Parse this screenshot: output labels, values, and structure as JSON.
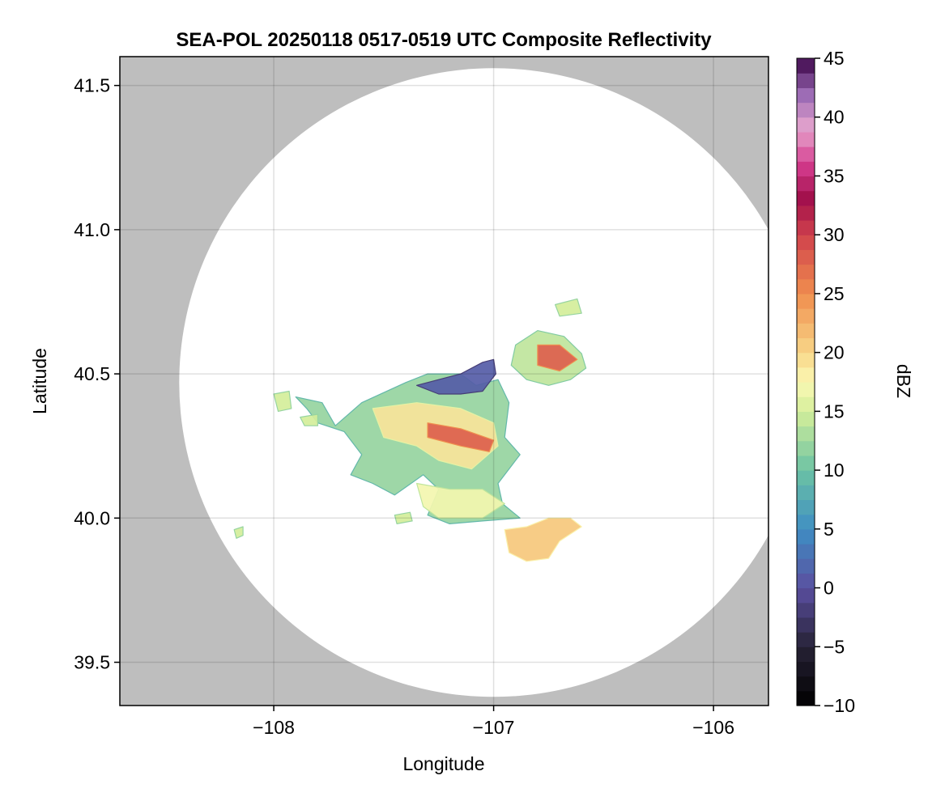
{
  "chart_data": {
    "type": "heatmap",
    "title": "SEA-POL 20250118 0517-0519 UTC Composite Reflectivity",
    "xlabel": "Longitude",
    "ylabel": "Latitude",
    "xlim": [
      -108.7,
      -105.75
    ],
    "ylim": [
      39.35,
      41.6
    ],
    "xticks": [
      -108,
      -107,
      -106
    ],
    "xtick_labels": [
      "−108",
      "−107",
      "−106"
    ],
    "yticks": [
      39.5,
      40.0,
      40.5,
      41.0,
      41.5
    ],
    "ytick_labels": [
      "39.5",
      "40.0",
      "40.5",
      "41.0",
      "41.5"
    ],
    "grid": true,
    "background_color": "#bebebe",
    "radar_coverage": {
      "center": [
        -107.0,
        40.47
      ],
      "radius_deg_lon": 1.43,
      "radius_deg_lat": 1.09,
      "fill": "#ffffff"
    },
    "colorbar": {
      "label": "dBZ",
      "min": -10,
      "max": 45,
      "ticks": [
        -10,
        -5,
        0,
        5,
        10,
        15,
        20,
        25,
        30,
        35,
        40,
        45
      ],
      "tick_labels": [
        "−10",
        "−5",
        "0",
        "5",
        "10",
        "15",
        "20",
        "25",
        "30",
        "35",
        "40",
        "45"
      ],
      "stops": [
        {
          "v": -10,
          "c": "#000000"
        },
        {
          "v": -5,
          "c": "#272236"
        },
        {
          "v": 0,
          "c": "#5a4fa0"
        },
        {
          "v": 5,
          "c": "#3f8ec3"
        },
        {
          "v": 10,
          "c": "#6cc2a4"
        },
        {
          "v": 15,
          "c": "#d4ee9a"
        },
        {
          "v": 17.5,
          "c": "#fbf8b4"
        },
        {
          "v": 20,
          "c": "#f8d688"
        },
        {
          "v": 25,
          "c": "#f08e4e"
        },
        {
          "v": 30,
          "c": "#d0414c"
        },
        {
          "v": 33,
          "c": "#a10f4a"
        },
        {
          "v": 36,
          "c": "#d43c8e"
        },
        {
          "v": 39,
          "c": "#e7a6ce"
        },
        {
          "v": 42,
          "c": "#9a69b4"
        },
        {
          "v": 45,
          "c": "#3d0548"
        }
      ]
    },
    "echo_regions": [
      {
        "name": "main-cell",
        "dbz": 12,
        "polygon": [
          [
            -107.9,
            40.42
          ],
          [
            -107.78,
            40.4
          ],
          [
            -107.72,
            40.32
          ],
          [
            -107.6,
            40.4
          ],
          [
            -107.4,
            40.47
          ],
          [
            -107.3,
            40.5
          ],
          [
            -107.15,
            40.5
          ],
          [
            -107.08,
            40.46
          ],
          [
            -106.98,
            40.48
          ],
          [
            -106.93,
            40.4
          ],
          [
            -106.95,
            40.28
          ],
          [
            -106.88,
            40.22
          ],
          [
            -106.98,
            40.12
          ],
          [
            -106.96,
            40.05
          ],
          [
            -106.88,
            40.0
          ],
          [
            -107.05,
            39.99
          ],
          [
            -107.2,
            39.98
          ],
          [
            -107.3,
            40.01
          ],
          [
            -107.25,
            40.1
          ],
          [
            -107.32,
            40.15
          ],
          [
            -107.45,
            40.08
          ],
          [
            -107.55,
            40.12
          ],
          [
            -107.65,
            40.15
          ],
          [
            -107.6,
            40.22
          ],
          [
            -107.68,
            40.3
          ],
          [
            -107.8,
            40.33
          ],
          [
            -107.85,
            40.38
          ]
        ]
      },
      {
        "name": "main-core",
        "dbz": 19,
        "polygon": [
          [
            -107.55,
            40.38
          ],
          [
            -107.35,
            40.4
          ],
          [
            -107.15,
            40.38
          ],
          [
            -107.0,
            40.33
          ],
          [
            -106.98,
            40.25
          ],
          [
            -107.1,
            40.17
          ],
          [
            -107.25,
            40.2
          ],
          [
            -107.35,
            40.25
          ],
          [
            -107.5,
            40.28
          ]
        ]
      },
      {
        "name": "main-south-lobe",
        "dbz": 17,
        "polygon": [
          [
            -107.35,
            40.12
          ],
          [
            -107.2,
            40.1
          ],
          [
            -107.05,
            40.1
          ],
          [
            -106.95,
            40.05
          ],
          [
            -107.05,
            40.0
          ],
          [
            -107.25,
            40.0
          ],
          [
            -107.32,
            40.04
          ]
        ]
      },
      {
        "name": "main-high-core",
        "dbz": 28,
        "polygon": [
          [
            -107.3,
            40.33
          ],
          [
            -107.15,
            40.31
          ],
          [
            -107.0,
            40.27
          ],
          [
            -107.02,
            40.23
          ],
          [
            -107.15,
            40.25
          ],
          [
            -107.3,
            40.28
          ]
        ]
      },
      {
        "name": "north-band",
        "dbz": 1,
        "polygon": [
          [
            -107.35,
            40.46
          ],
          [
            -107.25,
            40.48
          ],
          [
            -107.15,
            40.5
          ],
          [
            -107.05,
            40.54
          ],
          [
            -107.0,
            40.55
          ],
          [
            -106.99,
            40.5
          ],
          [
            -107.05,
            40.44
          ],
          [
            -107.15,
            40.43
          ],
          [
            -107.25,
            40.43
          ]
        ]
      },
      {
        "name": "ne-cell",
        "dbz": 14,
        "polygon": [
          [
            -106.9,
            40.6
          ],
          [
            -106.8,
            40.65
          ],
          [
            -106.68,
            40.63
          ],
          [
            -106.6,
            40.57
          ],
          [
            -106.58,
            40.52
          ],
          [
            -106.65,
            40.48
          ],
          [
            -106.75,
            40.46
          ],
          [
            -106.85,
            40.48
          ],
          [
            -106.92,
            40.53
          ]
        ]
      },
      {
        "name": "ne-core",
        "dbz": 28,
        "polygon": [
          [
            -106.8,
            40.6
          ],
          [
            -106.7,
            40.6
          ],
          [
            -106.62,
            40.55
          ],
          [
            -106.7,
            40.51
          ],
          [
            -106.8,
            40.53
          ]
        ]
      },
      {
        "name": "se-cell",
        "dbz": 21,
        "polygon": [
          [
            -106.95,
            39.96
          ],
          [
            -106.85,
            39.97
          ],
          [
            -106.75,
            40.0
          ],
          [
            -106.65,
            40.0
          ],
          [
            -106.6,
            39.97
          ],
          [
            -106.7,
            39.92
          ],
          [
            -106.75,
            39.86
          ],
          [
            -106.85,
            39.85
          ],
          [
            -106.93,
            39.88
          ]
        ]
      },
      {
        "name": "far-ne-cell",
        "dbz": 15,
        "polygon": [
          [
            -106.72,
            40.74
          ],
          [
            -106.62,
            40.76
          ],
          [
            -106.6,
            40.71
          ],
          [
            -106.7,
            40.7
          ]
        ]
      },
      {
        "name": "west-fragment",
        "dbz": 15,
        "polygon": [
          [
            -108.0,
            40.43
          ],
          [
            -107.93,
            40.44
          ],
          [
            -107.92,
            40.38
          ],
          [
            -107.98,
            40.37
          ]
        ]
      },
      {
        "name": "west-fragment-2",
        "dbz": 15,
        "polygon": [
          [
            -107.88,
            40.35
          ],
          [
            -107.8,
            40.36
          ],
          [
            -107.8,
            40.32
          ],
          [
            -107.86,
            40.32
          ]
        ]
      },
      {
        "name": "sw-fragment",
        "dbz": 15,
        "polygon": [
          [
            -107.45,
            40.01
          ],
          [
            -107.38,
            40.02
          ],
          [
            -107.37,
            39.99
          ],
          [
            -107.44,
            39.98
          ]
        ]
      },
      {
        "name": "far-sw-fragment",
        "dbz": 15,
        "polygon": [
          [
            -108.18,
            39.96
          ],
          [
            -108.14,
            39.97
          ],
          [
            -108.14,
            39.94
          ],
          [
            -108.17,
            39.93
          ]
        ]
      }
    ]
  }
}
